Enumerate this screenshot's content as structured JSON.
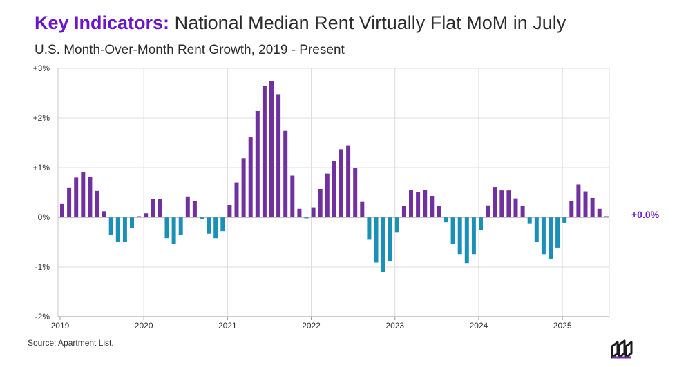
{
  "header": {
    "title_lead": "Key Indicators:",
    "title_rest": " National Median Rent Virtually Flat MoM in July",
    "subtitle": "U.S. Month-Over-Month Rent Growth, 2019 - Present"
  },
  "footer": {
    "source": "Source: Apartment List."
  },
  "colors": {
    "positive": "#7030a0",
    "negative": "#1a8fb8",
    "latest_label": "#6c16c9",
    "grid": "#dcdcdc"
  },
  "chart_data": {
    "type": "bar",
    "title": "U.S. Month-Over-Month Rent Growth, 2019 - Present",
    "xlabel": "",
    "ylabel": "",
    "ylim": [
      -2,
      3
    ],
    "y_ticks": [
      3,
      2,
      1,
      0,
      -1,
      -2
    ],
    "y_tick_labels": [
      "+3%",
      "+2%",
      "+1%",
      "0%",
      "-1%",
      "-2%"
    ],
    "x_tick_labels": [
      "2019",
      "2020",
      "2021",
      "2022",
      "2023",
      "2024",
      "2025"
    ],
    "start": "2019-01",
    "end": "2025-07",
    "unit": "percent",
    "latest_label": "+0.0%",
    "values": [
      0.28,
      0.6,
      0.8,
      0.91,
      0.82,
      0.53,
      0.12,
      -0.36,
      -0.5,
      -0.5,
      -0.22,
      0.0,
      0.08,
      0.37,
      0.37,
      -0.42,
      -0.53,
      -0.36,
      0.42,
      0.33,
      -0.04,
      -0.33,
      -0.42,
      -0.28,
      0.25,
      0.7,
      1.19,
      1.61,
      2.14,
      2.65,
      2.74,
      2.48,
      1.74,
      0.84,
      0.17,
      -0.02,
      0.2,
      0.57,
      0.88,
      1.13,
      1.37,
      1.45,
      1.0,
      0.31,
      -0.45,
      -0.91,
      -1.1,
      -0.89,
      -0.31,
      0.23,
      0.55,
      0.5,
      0.55,
      0.43,
      0.23,
      -0.1,
      -0.54,
      -0.74,
      -0.92,
      -0.74,
      -0.25,
      0.24,
      0.61,
      0.54,
      0.54,
      0.38,
      0.23,
      -0.12,
      -0.5,
      -0.74,
      -0.84,
      -0.61,
      -0.11,
      0.33,
      0.66,
      0.52,
      0.39,
      0.17,
      0.02
    ]
  }
}
